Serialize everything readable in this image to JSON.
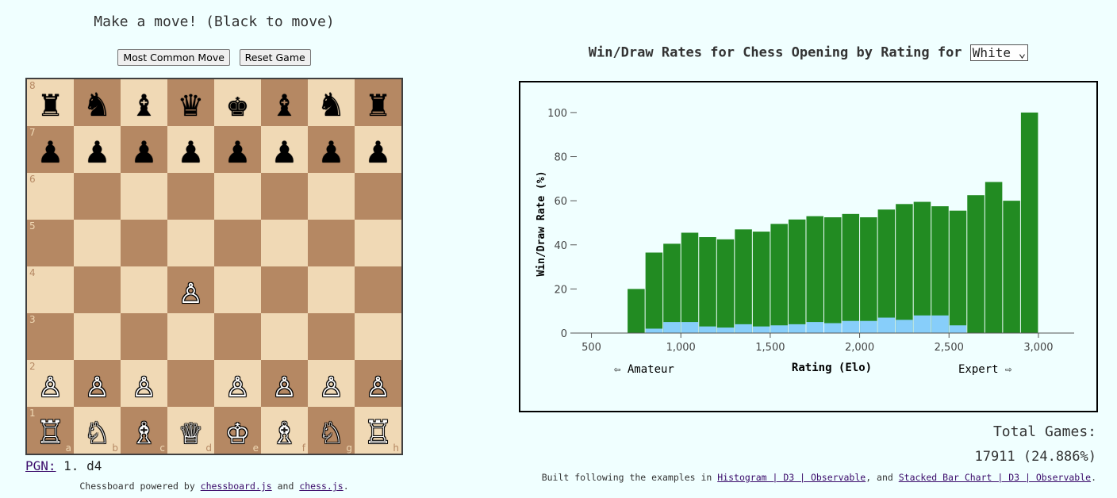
{
  "status": "Make a move! (Black to move)",
  "buttons": {
    "most_common": "Most Common Move",
    "reset": "Reset Game"
  },
  "board": {
    "files": [
      "a",
      "b",
      "c",
      "d",
      "e",
      "f",
      "g",
      "h"
    ],
    "ranks": [
      "8",
      "7",
      "6",
      "5",
      "4",
      "3",
      "2",
      "1"
    ],
    "pieces": [
      [
        "♜",
        "♞",
        "♝",
        "♛",
        "♚",
        "♝",
        "♞",
        "♜"
      ],
      [
        "♟",
        "♟",
        "♟",
        "♟",
        "♟",
        "♟",
        "♟",
        "♟"
      ],
      [
        "",
        "",
        "",
        "",
        "",
        "",
        "",
        ""
      ],
      [
        "",
        "",
        "",
        "",
        "",
        "",
        "",
        ""
      ],
      [
        "",
        "",
        "",
        "♙",
        "",
        "",
        "",
        ""
      ],
      [
        "",
        "",
        "",
        "",
        "",
        "",
        "",
        ""
      ],
      [
        "♙",
        "♙",
        "♙",
        "",
        "♙",
        "♙",
        "♙",
        "♙"
      ],
      [
        "♖",
        "♘",
        "♗",
        "♕",
        "♔",
        "♗",
        "♘",
        "♖"
      ]
    ],
    "colors": {
      "light": "#f0d9b5",
      "dark": "#b58863"
    }
  },
  "pgn": {
    "label": "PGN:",
    "moves": "1. d4"
  },
  "credit": {
    "prefix": "Chessboard powered by ",
    "lib1": "chessboard.js",
    "mid": " and ",
    "lib2": "chess.js",
    "suffix": "."
  },
  "chart_header": {
    "title": "Win/Draw Rates for Chess Opening by Rating for",
    "color_select": "White"
  },
  "chart_data": {
    "type": "bar",
    "ylabel": "Win/Draw Rate (%)",
    "xlabel": "Rating (Elo)",
    "left_annotation": "⇦ Amateur",
    "right_annotation": "Expert ⇨",
    "xlim": [
      400,
      3200
    ],
    "ylim": [
      0,
      105
    ],
    "xticks": [
      500,
      1000,
      1500,
      2000,
      2500,
      3000
    ],
    "xtick_labels": [
      "500",
      "1,000",
      "1,500",
      "2,000",
      "2,500",
      "3,000"
    ],
    "yticks": [
      0,
      20,
      40,
      60,
      80,
      100
    ],
    "bin_start": 700,
    "bin_width": 100,
    "series": [
      {
        "name": "Win",
        "color": "#228b22",
        "values": [
          20,
          36.5,
          40.5,
          45.5,
          43.5,
          42.5,
          47,
          46,
          49.5,
          51.5,
          53,
          52.5,
          54,
          52.5,
          56,
          58.5,
          59.5,
          57.5,
          55.5,
          62.5,
          68.5,
          60,
          100
        ]
      },
      {
        "name": "Draw",
        "color": "#87cefa",
        "values": [
          0,
          2,
          5,
          5,
          3,
          2.5,
          4,
          3,
          3.5,
          4,
          5,
          4.5,
          5.5,
          5.5,
          7,
          6,
          8,
          8,
          3.5,
          0,
          0,
          0,
          0
        ]
      }
    ]
  },
  "totals": {
    "label": "Total Games:",
    "value": "17911 (24.886%)"
  },
  "built": {
    "prefix": "Built following the examples in ",
    "link1": "Histogram | D3 | Observable",
    "mid": ", and ",
    "link2": "Stacked Bar Chart | D3 | Observable",
    "suffix": "."
  }
}
